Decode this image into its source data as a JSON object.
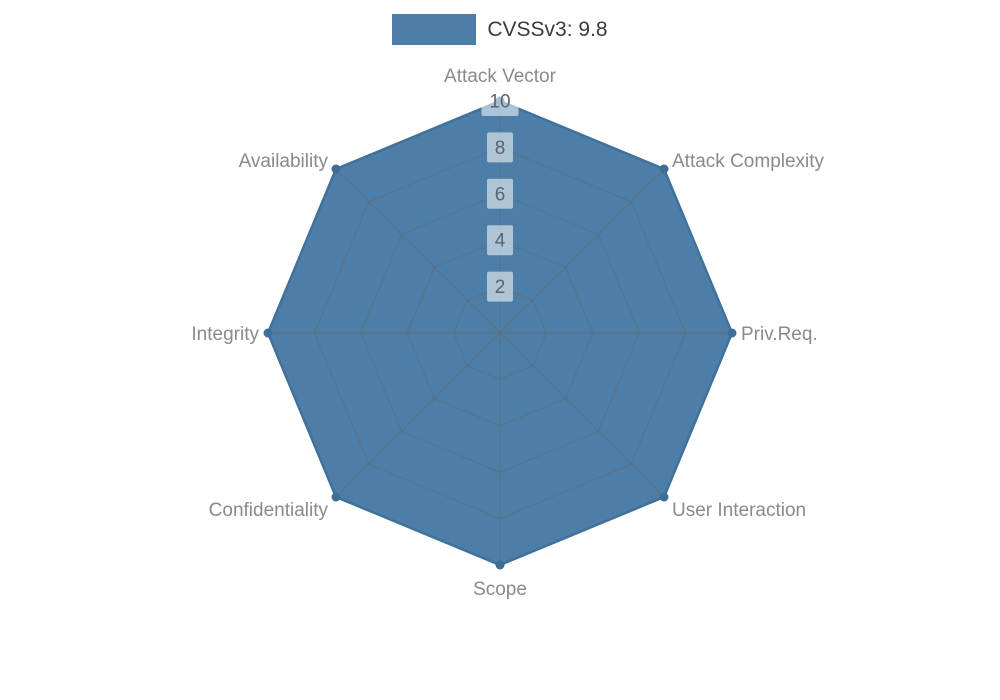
{
  "legend": {
    "label": "CVSSv3: 9.8"
  },
  "colors": {
    "series_fill": "#4d7ea8",
    "series_stroke": "#40719b",
    "dot": "#3e6d96",
    "grid": "#666666",
    "axis_label": "#8a8a8a",
    "tick_text": "#5a6470",
    "tick_bg_opacity": 0.55
  },
  "chart_data": {
    "type": "radar",
    "title": "CVSSv3: 9.8",
    "categories": [
      "Attack Vector",
      "Attack Complexity",
      "Priv.Req.",
      "User Interaction",
      "Scope",
      "Confidentiality",
      "Integrity",
      "Availability"
    ],
    "series": [
      {
        "name": "CVSSv3: 9.8",
        "values": [
          10,
          10,
          10,
          10,
          10,
          10,
          10,
          10
        ]
      }
    ],
    "ticks": [
      2,
      4,
      6,
      8,
      10
    ],
    "rmax": 10,
    "grid": true,
    "legend_position": "top-center"
  }
}
